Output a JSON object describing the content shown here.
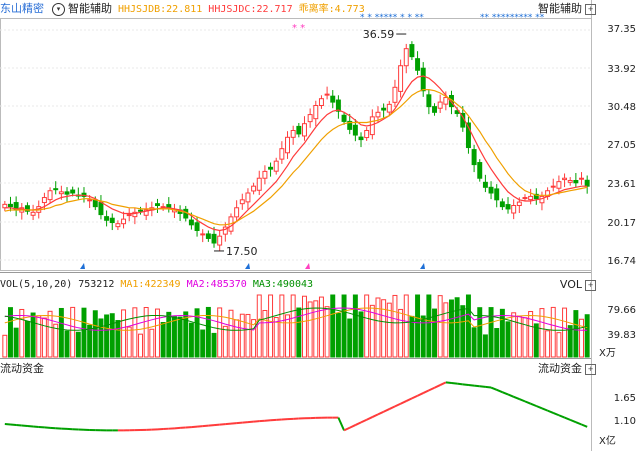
{
  "main": {
    "stock_name": "东山精密",
    "circle_glyph": "▾",
    "indicator_label": "智能辅助",
    "hhjsjdb": "HHJSJDB:22.811",
    "hhjsjdc": "HHJSJDC:22.717",
    "deviation": "乖离率:4.773",
    "right_label": "智能辅助",
    "markers": "* *",
    "top_stars_a": "* * ***** * * **",
    "top_stars_b": "** ********* **",
    "high_label": "36.59",
    "low_label": "17.50",
    "y_ticks": [
      "37.35",
      "33.92",
      "30.48",
      "27.05",
      "23.61",
      "20.17",
      "16.74"
    ]
  },
  "volume": {
    "title": "VOL(5,10,20)",
    "vol": "753212",
    "ma1": "MA1:422349",
    "ma2": "MA2:485370",
    "ma3": "MA3:490043",
    "right_label": "VOL",
    "y_ticks": [
      "79.66",
      "39.83"
    ],
    "unit": "X万"
  },
  "flow": {
    "title": "流动资金",
    "right_label": "流动资金",
    "y_ticks": [
      "1.65",
      "1.10"
    ],
    "unit": "X亿"
  },
  "colors": {
    "up": "#ff3b3b",
    "down": "#00a000",
    "ma_short": "#ff3b3b",
    "ma_long": "#f0a000",
    "ma1": "#f0a000",
    "ma2": "#e000e0",
    "ma3": "#009000",
    "marker_blue": "#1e6fd6",
    "marker_pink": "#ff40c0"
  },
  "chart_data": {
    "type": "candlestick",
    "title": "东山精密",
    "y_range": [
      16.0,
      38.0
    ],
    "high": 36.59,
    "low": 17.5,
    "close_series": [
      21.6,
      21.4,
      21.1,
      21.3,
      21.0,
      20.9,
      21.4,
      22.2,
      22.8,
      22.9,
      22.7,
      22.5,
      22.6,
      22.4,
      22.3,
      22.0,
      21.4,
      20.7,
      20.2,
      20.0,
      19.9,
      20.3,
      20.7,
      20.9,
      21.0,
      21.1,
      21.3,
      21.5,
      21.4,
      21.3,
      21.1,
      20.8,
      20.4,
      19.8,
      19.3,
      19.0,
      18.6,
      18.2,
      18.8,
      19.6,
      20.5,
      21.3,
      22.0,
      22.6,
      23.2,
      23.9,
      24.5,
      24.7,
      25.4,
      26.5,
      27.5,
      28.1,
      27.8,
      28.7,
      29.5,
      30.3,
      30.9,
      31.3,
      30.6,
      29.8,
      28.9,
      28.2,
      27.7,
      27.3,
      28.1,
      29.3,
      29.7,
      29.9,
      30.4,
      31.9,
      33.8,
      35.3,
      34.6,
      33.4,
      31.6,
      30.2,
      29.7,
      30.6,
      31.0,
      30.2,
      29.6,
      28.4,
      26.6,
      25.1,
      23.9,
      23.1,
      22.6,
      22.0,
      21.4,
      21.2,
      21.5,
      21.8,
      22.2,
      22.3,
      22.1,
      22.3,
      22.8,
      23.2,
      23.6,
      23.9,
      23.7,
      23.5,
      23.9,
      23.2
    ],
    "ma_short": [
      21.3,
      21.3,
      21.2,
      21.2,
      21.1,
      21.1,
      21.2,
      21.4,
      21.7,
      22.0,
      22.2,
      22.3,
      22.4,
      22.4,
      22.4,
      22.3,
      22.1,
      21.8,
      21.5,
      21.2,
      21.0,
      20.8,
      20.8,
      20.8,
      20.9,
      21.0,
      21.1,
      21.2,
      21.3,
      21.3,
      21.2,
      21.1,
      20.9,
      20.6,
      20.2,
      19.9,
      19.6,
      19.4,
      19.3,
      19.4,
      19.7,
      20.1,
      20.6,
      21.1,
      21.6,
      22.1,
      22.6,
      23.1,
      23.6,
      24.3,
      25.0,
      25.8,
      26.4,
      27.0,
      27.7,
      28.4,
      29.0,
      29.5,
      29.8,
      29.9,
      29.7,
      29.4,
      29.0,
      28.6,
      28.5,
      28.6,
      28.8,
      29.1,
      29.4,
      30.0,
      30.8,
      31.7,
      32.4,
      32.8,
      32.9,
      32.7,
      32.3,
      31.8,
      31.2,
      30.6,
      30.0,
      29.3,
      28.4,
      27.4,
      26.4,
      25.5,
      24.7,
      24.0,
      23.3,
      22.7,
      22.3,
      22.0,
      21.9,
      21.9,
      22.0,
      22.1,
      22.3,
      22.5,
      22.7,
      22.9,
      23.0,
      23.1,
      23.2,
      23.2
    ],
    "ma_long": [
      21.0,
      21.1,
      21.1,
      21.1,
      21.1,
      21.1,
      21.1,
      21.2,
      21.3,
      21.5,
      21.6,
      21.8,
      21.9,
      22.0,
      22.1,
      22.1,
      22.0,
      21.9,
      21.8,
      21.6,
      21.5,
      21.4,
      21.3,
      21.3,
      21.2,
      21.2,
      21.2,
      21.2,
      21.2,
      21.2,
      21.1,
      21.0,
      20.9,
      20.7,
      20.5,
      20.3,
      20.1,
      19.9,
      19.8,
      19.8,
      19.9,
      20.1,
      20.4,
      20.7,
      21.0,
      21.4,
      21.8,
      22.2,
      22.7,
      23.2,
      23.8,
      24.4,
      24.9,
      25.5,
      26.1,
      26.7,
      27.3,
      27.8,
      28.2,
      28.5,
      28.7,
      28.8,
      28.8,
      28.8,
      28.8,
      28.9,
      29.0,
      29.2,
      29.4,
      29.8,
      30.2,
      30.7,
      31.2,
      31.5,
      31.7,
      31.7,
      31.6,
      31.4,
      31.1,
      30.8,
      30.4,
      30.0,
      29.4,
      28.7,
      28.0,
      27.2,
      26.5,
      25.7,
      25.0,
      24.3,
      23.7,
      23.2,
      22.8,
      22.6,
      22.4,
      22.4,
      22.4,
      22.5,
      22.6,
      22.7,
      22.8,
      22.9,
      23.0,
      23.1
    ]
  }
}
